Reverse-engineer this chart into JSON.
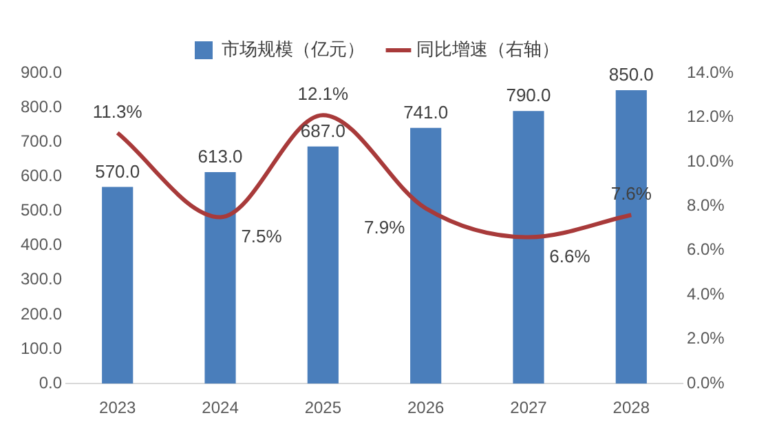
{
  "chart_data": {
    "type": "bar",
    "categories": [
      "2023",
      "2024",
      "2025",
      "2026",
      "2027",
      "2028"
    ],
    "series": [
      {
        "name": "市场规模（亿元）",
        "color": "#4a7ebb",
        "values": [
          570.0,
          613.0,
          687.0,
          741.0,
          790.0,
          850.0
        ],
        "value_labels": [
          "570.0",
          "613.0",
          "687.0",
          "741.0",
          "790.0",
          "850.0"
        ]
      },
      {
        "name": "同比增速（右轴）",
        "type": "line",
        "axis": "y2",
        "color": "#a83a3a",
        "values": [
          11.3,
          7.5,
          12.1,
          7.9,
          6.6,
          7.6
        ],
        "value_labels": [
          "11.3%",
          "7.5%",
          "12.1%",
          "7.9%",
          "6.6%",
          "7.6%"
        ]
      }
    ],
    "ylim": [
      0,
      900
    ],
    "yticks": [
      {
        "value": 0,
        "label": "0.0"
      },
      {
        "value": 100,
        "label": "100.0"
      },
      {
        "value": 200,
        "label": "200.0"
      },
      {
        "value": 300,
        "label": "300.0"
      },
      {
        "value": 400,
        "label": "400.0"
      },
      {
        "value": 500,
        "label": "500.0"
      },
      {
        "value": 600,
        "label": "600.0"
      },
      {
        "value": 700,
        "label": "700.0"
      },
      {
        "value": 800,
        "label": "800.0"
      },
      {
        "value": 900,
        "label": "900.0"
      }
    ],
    "y2lim": [
      0,
      14
    ],
    "y2ticks": [
      {
        "value": 0,
        "label": "0.0%"
      },
      {
        "value": 2,
        "label": "2.0%"
      },
      {
        "value": 4,
        "label": "4.0%"
      },
      {
        "value": 6,
        "label": "6.0%"
      },
      {
        "value": 8,
        "label": "8.0%"
      },
      {
        "value": 10,
        "label": "10.0%"
      },
      {
        "value": 12,
        "label": "12.0%"
      },
      {
        "value": 14,
        "label": "14.0%"
      }
    ],
    "grid": false,
    "legend": "top"
  }
}
